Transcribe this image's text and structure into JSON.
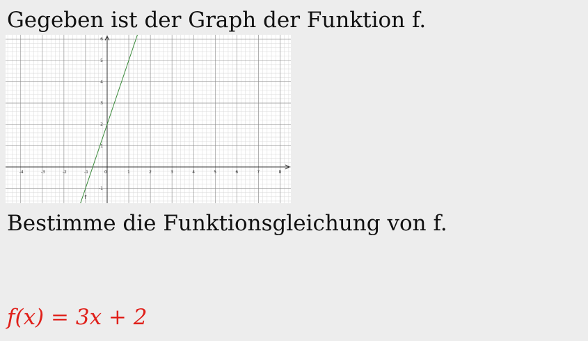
{
  "intro_text": "Gegeben ist der Graph der Funktion f.",
  "task_text": "Bestimme die Funktionsgleichung von f.",
  "answer": {
    "lhs": "f(x)",
    "eq": "=",
    "rhs": "3x + 2"
  },
  "colors": {
    "answer": "#e0201a",
    "function_line": "#3a8a3a",
    "background": "#ededed"
  },
  "chart_data": {
    "type": "line",
    "title": "",
    "xlabel": "",
    "ylabel": "",
    "xlim": [
      -4.7,
      8.5
    ],
    "ylim": [
      -1.7,
      6.2
    ],
    "grid": true,
    "minor_grid_divisions": 5,
    "x_ticks": [
      "-4",
      "-3",
      "-2",
      "-1",
      "0",
      "1",
      "2",
      "3",
      "4",
      "5",
      "6",
      "7",
      "8"
    ],
    "y_ticks": [
      "-1",
      "1",
      "2",
      "3",
      "4",
      "5",
      "6"
    ],
    "series": [
      {
        "name": "f",
        "x": [
          -1.5,
          1.5
        ],
        "y": [
          -2.5,
          6.5
        ]
      }
    ]
  }
}
